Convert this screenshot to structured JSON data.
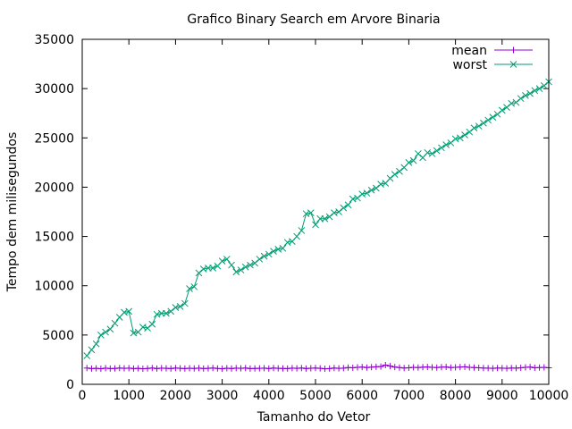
{
  "chart_data": {
    "type": "line",
    "title": "Grafico Binary Search em Arvore Binaria",
    "xlabel": "Tamanho do Vetor",
    "ylabel": "Tempo dem milisegundos",
    "xlim": [
      0,
      10000
    ],
    "ylim": [
      0,
      35000
    ],
    "xticks": [
      0,
      1000,
      2000,
      3000,
      4000,
      5000,
      6000,
      7000,
      8000,
      9000,
      10000
    ],
    "yticks": [
      0,
      5000,
      10000,
      15000,
      20000,
      25000,
      30000,
      35000
    ],
    "grid": false,
    "legend_position": "top-right",
    "series": [
      {
        "name": "mean",
        "color": "#9400d3",
        "marker": "plus",
        "x": [
          100,
          200,
          300,
          400,
          500,
          600,
          700,
          800,
          900,
          1000,
          1100,
          1200,
          1300,
          1400,
          1500,
          1600,
          1700,
          1800,
          1900,
          2000,
          2100,
          2200,
          2300,
          2400,
          2500,
          2600,
          2700,
          2800,
          2900,
          3000,
          3100,
          3200,
          3300,
          3400,
          3500,
          3600,
          3700,
          3800,
          3900,
          4000,
          4100,
          4200,
          4300,
          4400,
          4500,
          4600,
          4700,
          4800,
          4900,
          5000,
          5100,
          5200,
          5300,
          5400,
          5500,
          5600,
          5700,
          5800,
          5900,
          6000,
          6100,
          6200,
          6300,
          6400,
          6500,
          6600,
          6700,
          6800,
          6900,
          7000,
          7100,
          7200,
          7300,
          7400,
          7500,
          7600,
          7700,
          7800,
          7900,
          8000,
          8100,
          8200,
          8300,
          8400,
          8500,
          8600,
          8700,
          8800,
          8900,
          9000,
          9100,
          9200,
          9300,
          9400,
          9500,
          9600,
          9700,
          9800,
          9900,
          10000
        ],
        "y": [
          1650,
          1600,
          1620,
          1580,
          1640,
          1600,
          1610,
          1650,
          1620,
          1640,
          1600,
          1620,
          1580,
          1610,
          1650,
          1600,
          1640,
          1620,
          1600,
          1650,
          1620,
          1600,
          1630,
          1610,
          1640,
          1600,
          1620,
          1650,
          1610,
          1580,
          1630,
          1600,
          1640,
          1620,
          1650,
          1600,
          1610,
          1620,
          1640,
          1600,
          1650,
          1620,
          1610,
          1600,
          1640,
          1620,
          1650,
          1600,
          1630,
          1650,
          1620,
          1580,
          1600,
          1650,
          1620,
          1640,
          1700,
          1680,
          1720,
          1750,
          1700,
          1740,
          1780,
          1800,
          1950,
          1850,
          1750,
          1700,
          1650,
          1680,
          1720,
          1700,
          1740,
          1760,
          1720,
          1700,
          1740,
          1760,
          1700,
          1720,
          1750,
          1780,
          1720,
          1700,
          1680,
          1650,
          1640,
          1620,
          1650,
          1640,
          1620,
          1650,
          1640,
          1680,
          1720,
          1750,
          1680,
          1700,
          1720,
          1680
        ]
      },
      {
        "name": "worst",
        "color": "#009e73",
        "marker": "cross",
        "x": [
          100,
          200,
          300,
          400,
          500,
          600,
          700,
          800,
          900,
          1000,
          1100,
          1200,
          1300,
          1400,
          1500,
          1600,
          1700,
          1800,
          1900,
          2000,
          2100,
          2200,
          2300,
          2400,
          2500,
          2600,
          2700,
          2800,
          2900,
          3000,
          3100,
          3200,
          3300,
          3400,
          3500,
          3600,
          3700,
          3800,
          3900,
          4000,
          4100,
          4200,
          4300,
          4400,
          4500,
          4600,
          4700,
          4800,
          4900,
          5000,
          5100,
          5200,
          5300,
          5400,
          5500,
          5600,
          5700,
          5800,
          5900,
          6000,
          6100,
          6200,
          6300,
          6400,
          6500,
          6600,
          6700,
          6800,
          6900,
          7000,
          7100,
          7200,
          7300,
          7400,
          7500,
          7600,
          7700,
          7800,
          7900,
          8000,
          8100,
          8200,
          8300,
          8400,
          8500,
          8600,
          8700,
          8800,
          8900,
          9000,
          9100,
          9200,
          9300,
          9400,
          9500,
          9600,
          9700,
          9800,
          9900,
          10000
        ],
        "y": [
          2900,
          3500,
          4100,
          5000,
          5300,
          5600,
          6200,
          6800,
          7300,
          7400,
          5200,
          5300,
          5800,
          5700,
          6100,
          7100,
          7200,
          7200,
          7400,
          7800,
          7900,
          8200,
          9700,
          9900,
          11300,
          11700,
          11800,
          11800,
          12000,
          12500,
          12700,
          12100,
          11400,
          11600,
          11900,
          12100,
          12300,
          12700,
          13000,
          13200,
          13500,
          13700,
          13800,
          14400,
          14500,
          15000,
          15600,
          17300,
          17400,
          16200,
          16800,
          16800,
          17000,
          17400,
          17500,
          17900,
          18200,
          18800,
          18900,
          19300,
          19400,
          19700,
          19900,
          20300,
          20400,
          20900,
          21300,
          21600,
          22000,
          22500,
          22700,
          23400,
          23000,
          23500,
          23400,
          23700,
          24000,
          24300,
          24500,
          24900,
          25000,
          25300,
          25600,
          26000,
          26200,
          26500,
          26800,
          27100,
          27400,
          27800,
          28100,
          28500,
          28600,
          29000,
          29300,
          29500,
          29800,
          30000,
          30300,
          30700
        ]
      }
    ]
  }
}
